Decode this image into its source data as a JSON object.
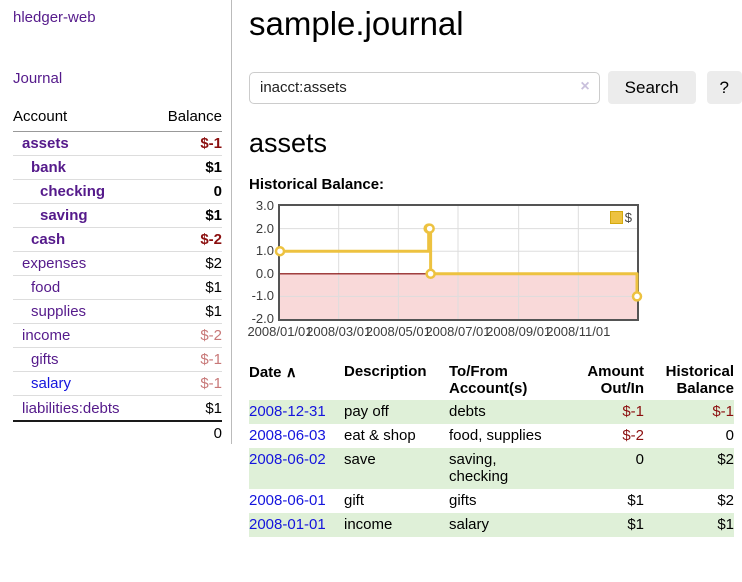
{
  "colors": {
    "link_purple": "#551a8b",
    "link_blue": "#1414dd",
    "negative_strong": "#8b0f0f",
    "negative_soft": "#c87878",
    "row_green": "#dff0d8",
    "chart_series_yellow": "#edc240",
    "chart_negative_fill": "#f9d9d9",
    "chart_zero_line": "#800000"
  },
  "sidebar": {
    "brand": "hledger-web",
    "journal_link": "Journal",
    "accounts_table": {
      "headers": {
        "account": "Account",
        "balance": "Balance"
      },
      "rows": [
        {
          "account": "assets",
          "balance": "$-1",
          "level": 1,
          "current": true
        },
        {
          "account": "bank",
          "balance": "$1",
          "level": 2,
          "current": true
        },
        {
          "account": "checking",
          "balance": "0",
          "level": 3,
          "current": true
        },
        {
          "account": "saving",
          "balance": "$1",
          "level": 3,
          "current": true
        },
        {
          "account": "cash",
          "balance": "$-2",
          "level": 2,
          "current": true
        },
        {
          "account": "expenses",
          "balance": "$2",
          "level": 1,
          "current": false
        },
        {
          "account": "food",
          "balance": "$1",
          "level": 2,
          "current": false
        },
        {
          "account": "supplies",
          "balance": "$1",
          "level": 2,
          "current": false
        },
        {
          "account": "income",
          "balance": "$-2",
          "level": 1,
          "current": false
        },
        {
          "account": "gifts",
          "balance": "$-1",
          "level": 2,
          "current": false
        },
        {
          "account": "salary",
          "balance": "$-1",
          "level": 2,
          "current": false
        },
        {
          "account": "liabilities:debts",
          "balance": "$1",
          "level": 1,
          "current": false
        }
      ],
      "total": "0"
    }
  },
  "main": {
    "title": "sample.journal",
    "search": {
      "value": "inacct:assets",
      "clear_icon": "×",
      "search_button": "Search",
      "help_button": "?"
    },
    "account_heading": "assets",
    "chart_heading": "Historical Balance:",
    "register_table": {
      "headers": {
        "date": "Date",
        "sort_icon": "∧",
        "description": "Description",
        "tofrom": "To/From Account(s)",
        "amount": "Amount Out/In",
        "historical": "Historical Balance"
      },
      "rows": [
        {
          "date": "2008-12-31",
          "description": "pay off",
          "tofrom": "debts",
          "amount": "$-1",
          "historical": "$-1"
        },
        {
          "date": "2008-06-03",
          "description": "eat & shop",
          "tofrom": "food, supplies",
          "amount": "$-2",
          "historical": "0"
        },
        {
          "date": "2008-06-02",
          "description": "save",
          "tofrom": "saving, checking",
          "amount": "0",
          "historical": "$2"
        },
        {
          "date": "2008-06-01",
          "description": "gift",
          "tofrom": "gifts",
          "amount": "$1",
          "historical": "$2"
        },
        {
          "date": "2008-01-01",
          "description": "income",
          "tofrom": "salary",
          "amount": "$1",
          "historical": "$1"
        }
      ]
    }
  },
  "chart_data": {
    "type": "line",
    "title": "Historical Balance:",
    "series": [
      {
        "name": "$",
        "color": "#edc240",
        "step": true,
        "points": [
          {
            "x": "2008-01-01",
            "y": 1
          },
          {
            "x": "2008-06-01",
            "y": 2
          },
          {
            "x": "2008-06-02",
            "y": 2
          },
          {
            "x": "2008-06-03",
            "y": 0
          },
          {
            "x": "2008-12-31",
            "y": -1
          }
        ]
      }
    ],
    "x_range": [
      "2008-01-01",
      "2008-12-31"
    ],
    "x_ticks": [
      "2008/01/01",
      "2008/03/01",
      "2008/05/01",
      "2008/07/01",
      "2008/09/01",
      "2008/11/01"
    ],
    "y_ticks": [
      3.0,
      2.0,
      1.0,
      0.0,
      -1.0,
      -2.0
    ],
    "ylim": [
      -2,
      3
    ],
    "grid": true,
    "grid_color": "#dddddd",
    "zero_line_color": "#800000",
    "negative_region_color": "#f9d9d9",
    "legend_position": "top-right"
  }
}
